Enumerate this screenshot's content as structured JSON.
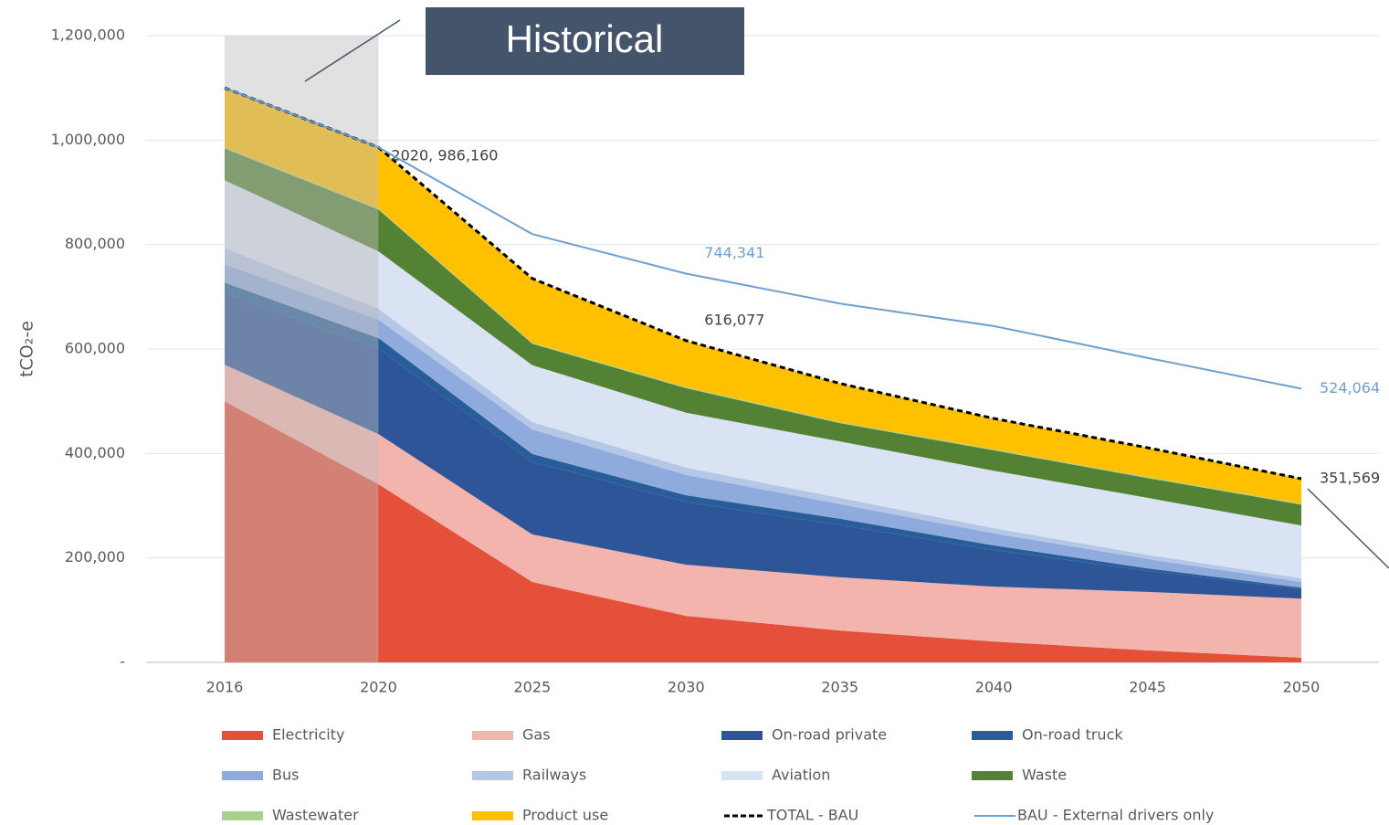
{
  "chart_data": {
    "type": "stacked_area",
    "y_label": "tCO₂-e",
    "categories": [
      "2016",
      "2020",
      "2025",
      "2030",
      "2035",
      "2040",
      "2045",
      "2050"
    ],
    "ylim": [
      0,
      1200000
    ],
    "yticks": [
      {
        "value": 0,
        "label": "-"
      },
      {
        "value": 200000,
        "label": "200,000"
      },
      {
        "value": 400000,
        "label": "400,000"
      },
      {
        "value": 600000,
        "label": "600,000"
      },
      {
        "value": 800000,
        "label": "800,000"
      },
      {
        "value": 1000000,
        "label": "1,000,000"
      },
      {
        "value": 1200000,
        "label": "1,200,000"
      }
    ],
    "grid": true,
    "highlight": {
      "from": "2016",
      "to": "2020",
      "label": "Historical"
    },
    "series": [
      {
        "name": "Electricity",
        "color": "#e5503b",
        "values": [
          500000,
          341000,
          154000,
          89000,
          61000,
          40000,
          23000,
          9000
        ]
      },
      {
        "name": "Gas",
        "color": "#f4b4ae",
        "values": [
          70000,
          96000,
          91000,
          98000,
          102000,
          105000,
          112000,
          113000
        ]
      },
      {
        "name": "On-road private",
        "color": "#2e5597",
        "values": [
          137000,
          164000,
          139000,
          120000,
          100000,
          70000,
          40000,
          18000
        ]
      },
      {
        "name": "On-road truck",
        "color": "#275d98",
        "values": [
          20000,
          20000,
          15000,
          13000,
          12000,
          9000,
          5000,
          3000
        ]
      },
      {
        "name": "Bus",
        "color": "#8faadc",
        "values": [
          35000,
          35000,
          47000,
          39000,
          28000,
          23000,
          18000,
          11000
        ]
      },
      {
        "name": "Railways",
        "color": "#b4c7e7",
        "values": [
          31000,
          21000,
          14000,
          14000,
          12000,
          10000,
          8000,
          7000
        ]
      },
      {
        "name": "Aviation",
        "color": "#dae3f3",
        "values": [
          130000,
          110000,
          109000,
          105000,
          108000,
          110000,
          109000,
          101000
        ]
      },
      {
        "name": "Waste",
        "color": "#548235",
        "values": [
          61000,
          80000,
          41000,
          47000,
          35000,
          39000,
          38000,
          40000
        ]
      },
      {
        "name": "Wastewater",
        "color": "#a9d18e",
        "values": [
          2000,
          2000,
          2000,
          2000,
          2000,
          2000,
          2000,
          2000
        ]
      },
      {
        "name": "Product use",
        "color": "#ffc000",
        "values": [
          115000,
          116000,
          123000,
          89000,
          74000,
          59000,
          56000,
          48000
        ]
      },
      {
        "name": "TOTAL - BAU",
        "type": "line",
        "dashed": true,
        "color": "#000000",
        "values": [
          1100000,
          986160,
          735000,
          616077,
          534000,
          467000,
          411000,
          351569
        ],
        "value_labels": [
          null,
          "2020,  986,160",
          null,
          "616,077",
          null,
          null,
          null,
          "351,569"
        ]
      },
      {
        "name": "BAU - External drivers only",
        "type": "line",
        "dashed": false,
        "color": "#6f9fd0",
        "values": [
          1100000,
          986160,
          820000,
          744341,
          687000,
          644000,
          583000,
          524064
        ],
        "value_labels": [
          null,
          null,
          null,
          "744,341",
          null,
          null,
          null,
          "524,064"
        ]
      }
    ]
  }
}
